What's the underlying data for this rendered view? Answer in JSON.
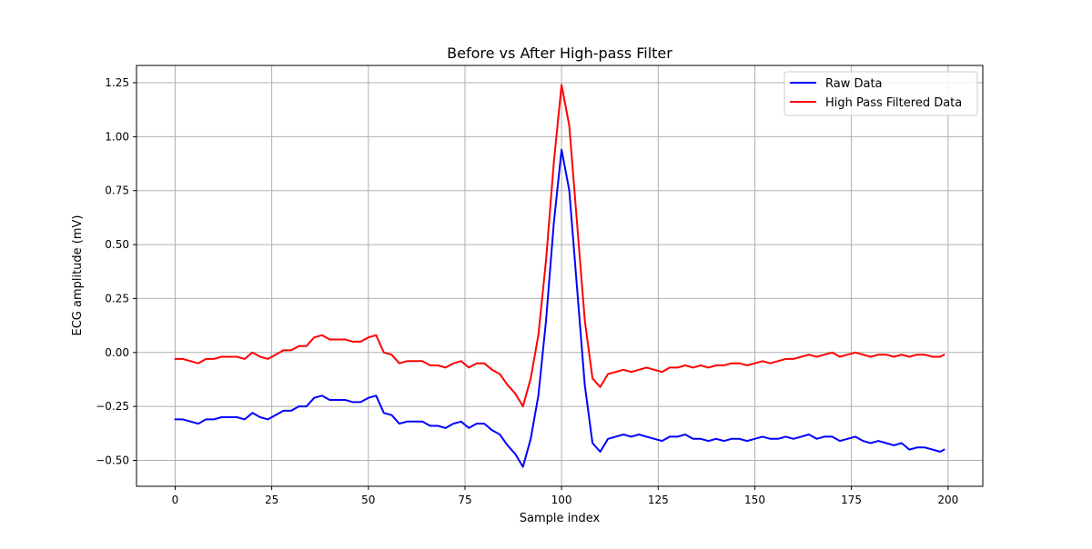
{
  "chart_data": {
    "type": "line",
    "title": "Before vs After High-pass Filter",
    "xlabel": "Sample index",
    "ylabel": "ECG amplitude (mV)",
    "xlim": [
      -10,
      209
    ],
    "ylim": [
      -0.62,
      1.33
    ],
    "x_ticks": [
      0,
      25,
      50,
      75,
      100,
      125,
      150,
      175,
      200
    ],
    "x_tick_labels": [
      "0",
      "25",
      "50",
      "75",
      "100",
      "125",
      "150",
      "175",
      "200"
    ],
    "y_ticks": [
      -0.5,
      -0.25,
      0.0,
      0.25,
      0.5,
      0.75,
      1.0,
      1.25
    ],
    "y_tick_labels": [
      "−0.50",
      "−0.25",
      "0.00",
      "0.25",
      "0.50",
      "0.75",
      "1.00",
      "1.25"
    ],
    "grid": true,
    "legend_position": "top-right",
    "x": [
      0,
      2,
      4,
      6,
      8,
      10,
      12,
      14,
      16,
      18,
      20,
      22,
      24,
      26,
      28,
      30,
      32,
      34,
      36,
      38,
      40,
      42,
      44,
      46,
      48,
      50,
      52,
      54,
      56,
      58,
      60,
      62,
      64,
      66,
      68,
      70,
      72,
      74,
      76,
      78,
      80,
      82,
      84,
      86,
      88,
      90,
      92,
      94,
      96,
      98,
      100,
      102,
      104,
      106,
      108,
      110,
      112,
      114,
      116,
      118,
      120,
      122,
      124,
      126,
      128,
      130,
      132,
      134,
      136,
      138,
      140,
      142,
      144,
      146,
      148,
      150,
      152,
      154,
      156,
      158,
      160,
      162,
      164,
      166,
      168,
      170,
      172,
      174,
      176,
      178,
      180,
      182,
      184,
      186,
      188,
      190,
      192,
      194,
      196,
      198,
      199
    ],
    "series": [
      {
        "name": "Raw Data",
        "color": "#0000ff",
        "values": [
          -0.31,
          -0.31,
          -0.32,
          -0.33,
          -0.31,
          -0.31,
          -0.3,
          -0.3,
          -0.3,
          -0.31,
          -0.28,
          -0.3,
          -0.31,
          -0.29,
          -0.27,
          -0.27,
          -0.25,
          -0.25,
          -0.21,
          -0.2,
          -0.22,
          -0.22,
          -0.22,
          -0.23,
          -0.23,
          -0.21,
          -0.2,
          -0.28,
          -0.29,
          -0.33,
          -0.32,
          -0.32,
          -0.32,
          -0.34,
          -0.34,
          -0.35,
          -0.33,
          -0.32,
          -0.35,
          -0.33,
          -0.33,
          -0.36,
          -0.38,
          -0.43,
          -0.47,
          -0.53,
          -0.4,
          -0.2,
          0.15,
          0.6,
          0.94,
          0.75,
          0.3,
          -0.15,
          -0.42,
          -0.46,
          -0.4,
          -0.39,
          -0.38,
          -0.39,
          -0.38,
          -0.39,
          -0.4,
          -0.41,
          -0.39,
          -0.39,
          -0.38,
          -0.4,
          -0.4,
          -0.41,
          -0.4,
          -0.41,
          -0.4,
          -0.4,
          -0.41,
          -0.4,
          -0.39,
          -0.4,
          -0.4,
          -0.39,
          -0.4,
          -0.39,
          -0.38,
          -0.4,
          -0.39,
          -0.39,
          -0.41,
          -0.4,
          -0.39,
          -0.41,
          -0.42,
          -0.41,
          -0.42,
          -0.43,
          -0.42,
          -0.45,
          -0.44,
          -0.44,
          -0.45,
          -0.46,
          -0.45
        ]
      },
      {
        "name": "High Pass Filtered Data",
        "color": "#ff0000",
        "values": [
          -0.03,
          -0.03,
          -0.04,
          -0.05,
          -0.03,
          -0.03,
          -0.02,
          -0.02,
          -0.02,
          -0.03,
          0.0,
          -0.02,
          -0.03,
          -0.01,
          0.01,
          0.01,
          0.03,
          0.03,
          0.07,
          0.08,
          0.06,
          0.06,
          0.06,
          0.05,
          0.05,
          0.07,
          0.08,
          0.0,
          -0.01,
          -0.05,
          -0.04,
          -0.04,
          -0.04,
          -0.06,
          -0.06,
          -0.07,
          -0.05,
          -0.04,
          -0.07,
          -0.05,
          -0.05,
          -0.08,
          -0.1,
          -0.15,
          -0.19,
          -0.25,
          -0.12,
          0.08,
          0.43,
          0.88,
          1.24,
          1.05,
          0.6,
          0.15,
          -0.12,
          -0.16,
          -0.1,
          -0.09,
          -0.08,
          -0.09,
          -0.08,
          -0.07,
          -0.08,
          -0.09,
          -0.07,
          -0.07,
          -0.06,
          -0.07,
          -0.06,
          -0.07,
          -0.06,
          -0.06,
          -0.05,
          -0.05,
          -0.06,
          -0.05,
          -0.04,
          -0.05,
          -0.04,
          -0.03,
          -0.03,
          -0.02,
          -0.01,
          -0.02,
          -0.01,
          0.0,
          -0.02,
          -0.01,
          0.0,
          -0.01,
          -0.02,
          -0.01,
          -0.01,
          -0.02,
          -0.01,
          -0.02,
          -0.01,
          -0.01,
          -0.02,
          -0.02,
          -0.01
        ]
      }
    ]
  }
}
